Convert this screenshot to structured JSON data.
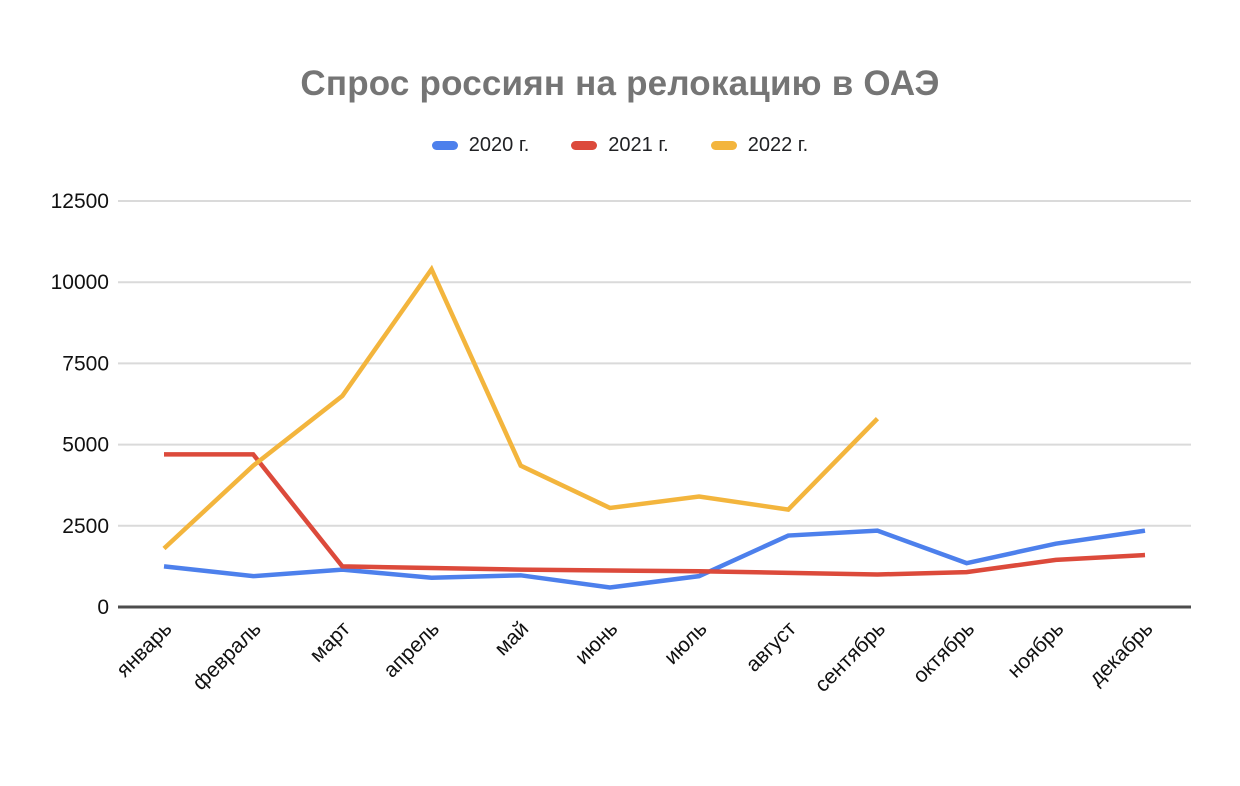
{
  "page": {
    "background": "#ffffff"
  },
  "chart_data": {
    "type": "line",
    "title": "Спрос россиян на релокацию в ОАЭ",
    "title_color": "#757575",
    "legend_position": "top",
    "categories": [
      "январь",
      "февраль",
      "март",
      "апрель",
      "май",
      "июнь",
      "июль",
      "август",
      "сентябрь",
      "октябрь",
      "ноябрь",
      "декабрь"
    ],
    "series": [
      {
        "name": "2020 г.",
        "color": "#4D80EC",
        "values": [
          1250,
          950,
          1150,
          900,
          975,
          600,
          950,
          2200,
          2350,
          1350,
          1950,
          2350
        ]
      },
      {
        "name": "2021 г.",
        "color": "#DC4A3B",
        "values": [
          4700,
          4700,
          1250,
          1200,
          1150,
          1125,
          1100,
          1050,
          1000,
          1075,
          1450,
          1600
        ]
      },
      {
        "name": "2022 г.",
        "color": "#F3B53D",
        "values": [
          1800,
          4350,
          6500,
          10400,
          4350,
          3050,
          3400,
          3000,
          5800,
          null,
          null,
          null
        ]
      }
    ],
    "ylim": [
      0,
      12500
    ],
    "yticks": [
      0,
      2500,
      5000,
      7500,
      10000,
      12500
    ],
    "grid": true,
    "gridline_color": "#DADADA",
    "axis_line_color": "#4D4D4D",
    "axis_label_color": "#111111"
  }
}
